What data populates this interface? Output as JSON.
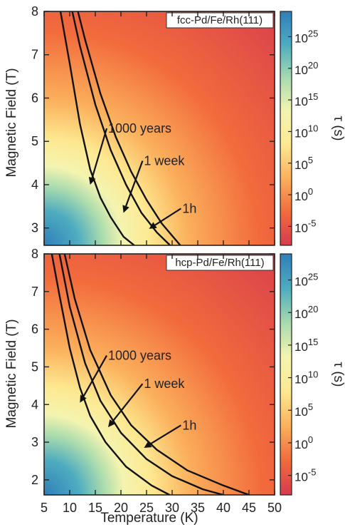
{
  "chart_data": [
    {
      "type": "heatmap",
      "panel_label": "fcc-Pd/Fe/Rh(111)",
      "ylabel": "Magnetic Field (T)",
      "xlabel": "",
      "xlim": [
        5,
        50
      ],
      "ylim": [
        2.6,
        8
      ],
      "yticks": [
        "3",
        "4",
        "5",
        "6",
        "7",
        "8"
      ],
      "xticks": [],
      "colorbar": {
        "label": "τ (s)",
        "scale": "log",
        "ticks": [
          {
            "base": "10",
            "exp": "25"
          },
          {
            "base": "10",
            "exp": "20"
          },
          {
            "base": "10",
            "exp": "15"
          },
          {
            "base": "10",
            "exp": "10"
          },
          {
            "base": "10",
            "exp": "5"
          },
          {
            "base": "10",
            "exp": "0"
          },
          {
            "base": "10",
            "exp": "-5"
          }
        ],
        "tick_log_values": [
          25,
          20,
          15,
          10,
          5,
          0,
          -5
        ],
        "range_log": [
          -8,
          29
        ],
        "colors": [
          "#d63b4e",
          "#f26b3c",
          "#fbb05c",
          "#fde890",
          "#f4f4b0",
          "#a8dbae",
          "#4eacc0",
          "#2f7fba"
        ]
      },
      "contours": [
        {
          "label": "1000 years",
          "points": [
            [
              8.2,
              8.0
            ],
            [
              10,
              6.8
            ],
            [
              12,
              5.4
            ],
            [
              14,
              4.35
            ],
            [
              16,
              3.7
            ],
            [
              18,
              3.25
            ],
            [
              20.5,
              2.8
            ],
            [
              22.6,
              2.6
            ]
          ]
        },
        {
          "label": "1 week",
          "points": [
            [
              10.5,
              8.0
            ],
            [
              12,
              7.2
            ],
            [
              15,
              5.85
            ],
            [
              18,
              4.8
            ],
            [
              21,
              4.0
            ],
            [
              24,
              3.35
            ],
            [
              27,
              2.9
            ],
            [
              29.6,
              2.6
            ]
          ]
        },
        {
          "label": "1h",
          "points": [
            [
              11.6,
              8.0
            ],
            [
              13,
              7.35
            ],
            [
              16,
              6.1
            ],
            [
              19,
              5.1
            ],
            [
              22,
              4.3
            ],
            [
              25,
              3.65
            ],
            [
              28,
              3.1
            ],
            [
              31.6,
              2.6
            ]
          ]
        }
      ],
      "annotations": [
        {
          "text": "1000 years",
          "text_at": [
            17.5,
            5.3
          ],
          "arrow_to": [
            14,
            4.0
          ]
        },
        {
          "text": "1 week",
          "text_at": [
            24.5,
            4.55
          ],
          "arrow_to": [
            20.5,
            3.35
          ]
        },
        {
          "text": "1h",
          "text_at": [
            32,
            3.45
          ],
          "arrow_to": [
            25.5,
            2.98
          ]
        }
      ]
    },
    {
      "type": "heatmap",
      "panel_label": "hcp-Pd/Fe/Rh(111)",
      "ylabel": "Magnetic Field (T)",
      "xlabel": "Temperature (K)",
      "xlim": [
        5,
        50
      ],
      "ylim": [
        1.6,
        8
      ],
      "yticks": [
        "2",
        "3",
        "4",
        "5",
        "6",
        "7",
        "8"
      ],
      "xticks": [
        "5",
        "10",
        "15",
        "20",
        "25",
        "30",
        "35",
        "40",
        "45",
        "50"
      ],
      "colorbar": {
        "label": "τ (s)",
        "scale": "log",
        "ticks": [
          {
            "base": "10",
            "exp": "25"
          },
          {
            "base": "10",
            "exp": "20"
          },
          {
            "base": "10",
            "exp": "15"
          },
          {
            "base": "10",
            "exp": "10"
          },
          {
            "base": "10",
            "exp": "5"
          },
          {
            "base": "10",
            "exp": "0"
          },
          {
            "base": "10",
            "exp": "-5"
          }
        ],
        "tick_log_values": [
          25,
          20,
          15,
          10,
          5,
          0,
          -5
        ],
        "range_log": [
          -8,
          29
        ],
        "colors": [
          "#d63b4e",
          "#f26b3c",
          "#fbb05c",
          "#fde890",
          "#f4f4b0",
          "#a8dbae",
          "#4eacc0",
          "#2f7fba"
        ]
      },
      "contours": [
        {
          "label": "1000 years",
          "points": [
            [
              6.5,
              8.0
            ],
            [
              8,
              6.9
            ],
            [
              10,
              5.5
            ],
            [
              12,
              4.45
            ],
            [
              14,
              3.7
            ],
            [
              17,
              3.0
            ],
            [
              21,
              2.35
            ],
            [
              26,
              1.85
            ],
            [
              29.5,
              1.6
            ]
          ]
        },
        {
          "label": "1 week",
          "points": [
            [
              8,
              8.0
            ],
            [
              10,
              6.6
            ],
            [
              13,
              5.1
            ],
            [
              16,
              4.1
            ],
            [
              20,
              3.25
            ],
            [
              25,
              2.55
            ],
            [
              30,
              2.1
            ],
            [
              36,
              1.75
            ],
            [
              40,
              1.6
            ]
          ]
        },
        {
          "label": "1h",
          "points": [
            [
              9,
              8.0
            ],
            [
              11,
              6.8
            ],
            [
              14,
              5.45
            ],
            [
              18,
              4.25
            ],
            [
              22,
              3.45
            ],
            [
              27,
              2.8
            ],
            [
              33,
              2.25
            ],
            [
              40,
              1.85
            ],
            [
              45,
              1.6
            ]
          ]
        }
      ],
      "annotations": [
        {
          "text": "1000 years",
          "text_at": [
            17.5,
            5.3
          ],
          "arrow_to": [
            12,
            4.05
          ]
        },
        {
          "text": "1 week",
          "text_at": [
            24.5,
            4.55
          ],
          "arrow_to": [
            17.5,
            3.4
          ]
        },
        {
          "text": "1h",
          "text_at": [
            32,
            3.45
          ],
          "arrow_to": [
            24.5,
            2.85
          ]
        }
      ]
    }
  ]
}
